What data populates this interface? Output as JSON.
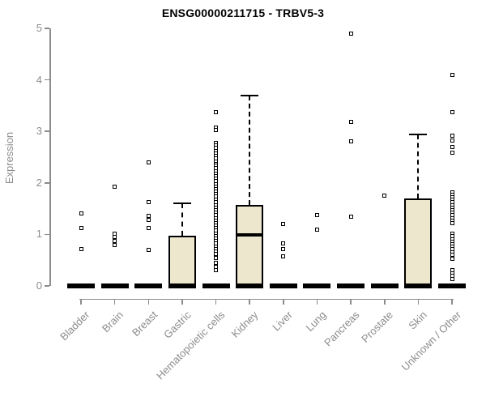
{
  "title": "ENSG00000211715 - TRBV5-3",
  "chart_data": {
    "type": "boxplot",
    "title": "ENSG00000211715 - TRBV5-3",
    "ylabel": "Expression",
    "xlabel": "",
    "ylim": [
      0,
      5
    ],
    "yticks": [
      0,
      1,
      2,
      3,
      4,
      5
    ],
    "grid": false,
    "legend": "none",
    "categories": [
      "Bladder",
      "Brain",
      "Breast",
      "Gastric",
      "Hematopoietic cells",
      "Kidney",
      "Liver",
      "Lung",
      "Pancreas",
      "Prostate",
      "Skin",
      "Unknown / Other"
    ],
    "colors": {
      "box_fill": "#ECE7CD",
      "box_border": "#000000",
      "median": "#000000",
      "axis": "#8c8c8c",
      "tick_label": "#8c8c8c",
      "title": "#000000",
      "outlier": "#000000"
    },
    "series": [
      {
        "label": "Bladder",
        "q1": 0,
        "median": 0,
        "q3": 0,
        "whisker_low": 0,
        "whisker_high": 0,
        "outliers": [
          1.41,
          1.12,
          0.72
        ]
      },
      {
        "label": "Brain",
        "q1": 0,
        "median": 0,
        "q3": 0,
        "whisker_low": 0,
        "whisker_high": 0,
        "outliers": [
          1.93,
          1.02,
          0.95,
          0.88,
          0.8
        ]
      },
      {
        "label": "Breast",
        "q1": 0,
        "median": 0,
        "q3": 0,
        "whisker_low": 0,
        "whisker_high": 0,
        "outliers": [
          2.39,
          1.62,
          1.36,
          1.28,
          1.12,
          0.7
        ]
      },
      {
        "label": "Gastric",
        "q1": 0,
        "median": 0,
        "q3": 0.97,
        "whisker_low": 0,
        "whisker_high": 1.6,
        "outliers": []
      },
      {
        "label": "Hematopoietic cells",
        "q1": 0,
        "median": 0,
        "q3": 0,
        "whisker_low": 0,
        "whisker_high": 0,
        "outliers": [
          3.38,
          3.07,
          3.02,
          2.78,
          2.73,
          2.68,
          2.62,
          2.57,
          2.52,
          2.47,
          2.42,
          2.37,
          2.33,
          2.28,
          2.23,
          2.18,
          2.13,
          2.08,
          2.03,
          1.98,
          1.93,
          1.88,
          1.83,
          1.78,
          1.73,
          1.68,
          1.62,
          1.57,
          1.52,
          1.47,
          1.42,
          1.37,
          1.32,
          1.27,
          1.22,
          1.17,
          1.12,
          1.07,
          1.02,
          0.97,
          0.92,
          0.87,
          0.82,
          0.77,
          0.72,
          0.67,
          0.62,
          0.55,
          0.45,
          0.37,
          0.31
        ]
      },
      {
        "label": "Kidney",
        "q1": 0,
        "median": 0.99,
        "q3": 1.58,
        "whisker_low": 0,
        "whisker_high": 3.69,
        "outliers": []
      },
      {
        "label": "Liver",
        "q1": 0,
        "median": 0,
        "q3": 0,
        "whisker_low": 0,
        "whisker_high": 0,
        "outliers": [
          1.2,
          0.82,
          0.71,
          0.57
        ]
      },
      {
        "label": "Lung",
        "q1": 0,
        "median": 0,
        "q3": 0,
        "whisker_low": 0,
        "whisker_high": 0,
        "outliers": [
          1.37,
          1.1
        ]
      },
      {
        "label": "Pancreas",
        "q1": 0,
        "median": 0,
        "q3": 0,
        "whisker_low": 0,
        "whisker_high": 0,
        "outliers": [
          4.89,
          3.18,
          2.81,
          1.34
        ]
      },
      {
        "label": "Prostate",
        "q1": 0,
        "median": 0,
        "q3": 0,
        "whisker_low": 0,
        "whisker_high": 0,
        "outliers": [
          1.76
        ]
      },
      {
        "label": "Skin",
        "q1": 0,
        "median": 0,
        "q3": 1.7,
        "whisker_low": 0,
        "whisker_high": 2.94,
        "outliers": []
      },
      {
        "label": "Unknown / Other",
        "q1": 0,
        "median": 0,
        "q3": 0,
        "whisker_low": 0,
        "whisker_high": 0,
        "outliers": [
          4.09,
          3.38,
          2.91,
          2.83,
          2.7,
          2.58,
          1.82,
          1.77,
          1.72,
          1.67,
          1.62,
          1.57,
          1.52,
          1.47,
          1.42,
          1.37,
          1.32,
          1.27,
          1.22,
          1.01,
          0.96,
          0.91,
          0.86,
          0.81,
          0.76,
          0.71,
          0.66,
          0.6,
          0.52,
          0.31,
          0.25,
          0.19,
          0.13
        ]
      }
    ]
  }
}
